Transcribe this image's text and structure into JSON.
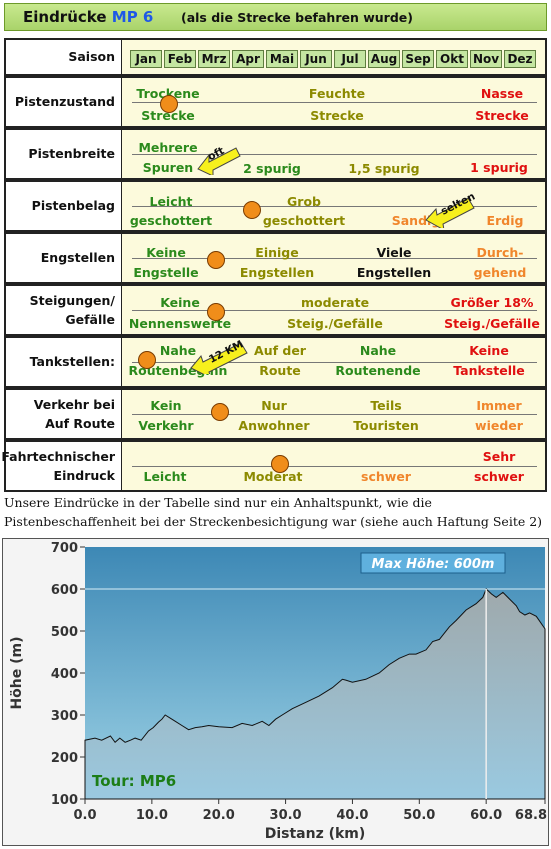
{
  "header": {
    "title_prefix": "Eindrücke",
    "title_mp": "MP 6",
    "subtitle": "(als die Strecke befahren wurde)"
  },
  "rows": {
    "saison": {
      "label": "Saison",
      "months": [
        "Jan",
        "Feb",
        "Mrz",
        "Apr",
        "Mai",
        "Jun",
        "Jul",
        "Aug",
        "Sep",
        "Okt",
        "Nov",
        "Dez"
      ]
    },
    "pistenzustand": {
      "label": "Pistenzustand",
      "a1": "Trockene",
      "a2": "Strecke",
      "b1": "Feuchte",
      "b2": "Strecke",
      "c1": "Nasse",
      "c2": "Strecke",
      "rating": 0.11
    },
    "pistenbreite": {
      "label": "Pistenbreite",
      "a1": "Mehrere",
      "a2": "Spuren",
      "b": "2 spurig",
      "c": "1,5 spurig",
      "d": "1 spurig",
      "tag": "oft"
    },
    "pistenbelag": {
      "label": "Pistenbelag",
      "a1": "Leicht",
      "a2": "geschottert",
      "b1": "Grob",
      "b2": "geschottert",
      "c": "Sandig",
      "d": "Erdig",
      "tag": "selten",
      "rating": 0.3
    },
    "engstellen": {
      "label": "Engstellen",
      "a1": "Keine",
      "a2": "Engstelle",
      "b1": "Einige",
      "b2": "Engstellen",
      "c1": "Viele",
      "c2": "Engstellen",
      "d1": "Durch-",
      "d2": "gehend",
      "rating": 0.22
    },
    "steigungen": {
      "label1": "Steigungen/",
      "label2": "Gefälle",
      "a1": "Keine",
      "a2": "Nennenswerte",
      "b1": "moderate",
      "b2": "Steig./Gefälle",
      "c1": "Größer 18%",
      "c2": "Steig./Gefälle",
      "rating": 0.22
    },
    "tankstellen": {
      "label": "Tankstellen:",
      "a1": "Nahe",
      "a2": "Routenbeginn",
      "b1": "Auf der",
      "b2": "Route",
      "c1": "Nahe",
      "c2": "Routenende",
      "d1": "Keine",
      "d2": "Tankstelle",
      "tag": "12 KM"
    },
    "verkehr": {
      "label1": "Verkehr bei",
      "label2": "Auf Route",
      "a1": "Kein",
      "a2": "Verkehr",
      "b1": "Nur",
      "b2": "Anwohner",
      "c1": "Teils",
      "c2": "Touristen",
      "d1": "Immer",
      "d2": "wieder",
      "rating": 0.23
    },
    "fahrtechnik": {
      "label1": "Fahrtechnischer",
      "label2": "Eindruck",
      "a": "Leicht",
      "b": "Moderat",
      "c": "schwer",
      "d1": "Sehr",
      "d2": "schwer",
      "rating": 0.38
    }
  },
  "note": "Unsere Eindrücke in der Tabelle sind nur ein Anhaltspunkt, wie die Pistenbeschaffenheit bei der Streckenbesichtigung war (siehe auch Haftung Seite 2)",
  "chart_data": {
    "type": "area",
    "xlabel": "Distanz (km)",
    "ylabel": "Höhe (m)",
    "xlim": [
      0,
      68.8
    ],
    "ylim": [
      100,
      700
    ],
    "xticks": [
      "0.0",
      "10.0",
      "20.0",
      "30.0",
      "40.0",
      "50.0",
      "60.0",
      "68.8"
    ],
    "yticks": [
      "100",
      "200",
      "300",
      "400",
      "500",
      "600",
      "700"
    ],
    "annotation": "Max Höhe: 600m",
    "tour_label": "Tour: MP6",
    "colors": {
      "fill_top": "#9fa9ac",
      "fill_bottom": "#9ac9e0",
      "sky_top": "#3d88b5",
      "sky_bottom": "#9ed3e6",
      "tour": "#1c7d16"
    },
    "x": [
      0,
      1.5,
      2.5,
      3.8,
      4.5,
      5.2,
      6,
      6.8,
      7.5,
      8.4,
      9.5,
      10.2,
      11,
      11.5,
      12,
      13,
      13.5,
      14.5,
      15.5,
      16.5,
      17.5,
      18.5,
      20,
      22,
      23.5,
      25,
      26.5,
      27.5,
      28.5,
      29.5,
      31,
      33,
      35,
      37,
      38.5,
      39,
      40,
      42,
      44,
      45.5,
      47,
      48.5,
      49.5,
      51,
      52,
      53,
      54.5,
      55.5,
      57,
      58.5,
      59.5,
      60,
      60.8,
      61.5,
      62.5,
      63.5,
      64.5,
      65,
      65.8,
      66.5,
      67.5,
      68.8
    ],
    "y": [
      240,
      245,
      240,
      250,
      235,
      245,
      235,
      240,
      245,
      240,
      262,
      270,
      283,
      290,
      300,
      290,
      285,
      275,
      265,
      270,
      272,
      275,
      272,
      270,
      280,
      275,
      285,
      275,
      290,
      300,
      315,
      330,
      345,
      365,
      385,
      383,
      378,
      385,
      400,
      420,
      435,
      445,
      445,
      455,
      475,
      480,
      510,
      525,
      550,
      565,
      580,
      600,
      588,
      580,
      592,
      576,
      560,
      546,
      538,
      543,
      535,
      505
    ]
  }
}
